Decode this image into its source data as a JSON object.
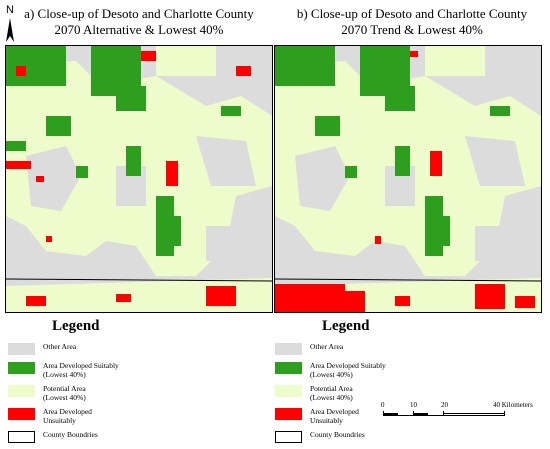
{
  "panel_a": {
    "title_line1": "a) Close-up of Desoto and Charlotte County",
    "title_line2": "2070 Alternative & Lowest 40%"
  },
  "panel_b": {
    "title_line1": "b) Close-up of Desoto and Charlotte County",
    "title_line2": "2070 Trend & Lowest 40%"
  },
  "north_arrow": {
    "label": "N"
  },
  "legend": {
    "title": "Legend",
    "items": [
      {
        "label": "Other Area",
        "color": "#dcdcdc"
      },
      {
        "label": "Area Developed Suitably\n(Lowest 40%)",
        "color": "#2e9e1e"
      },
      {
        "label": "Potential Area\n(Lowest 40%)",
        "color": "#eefccb"
      },
      {
        "label": "Area Developed\nUnsuitably",
        "color": "#ff0000"
      },
      {
        "label": "County Boundries",
        "color": "#ffffff"
      }
    ]
  },
  "scale_bar": {
    "ticks": [
      "0",
      "10",
      "20"
    ],
    "end_label": "40 Kilometers"
  }
}
